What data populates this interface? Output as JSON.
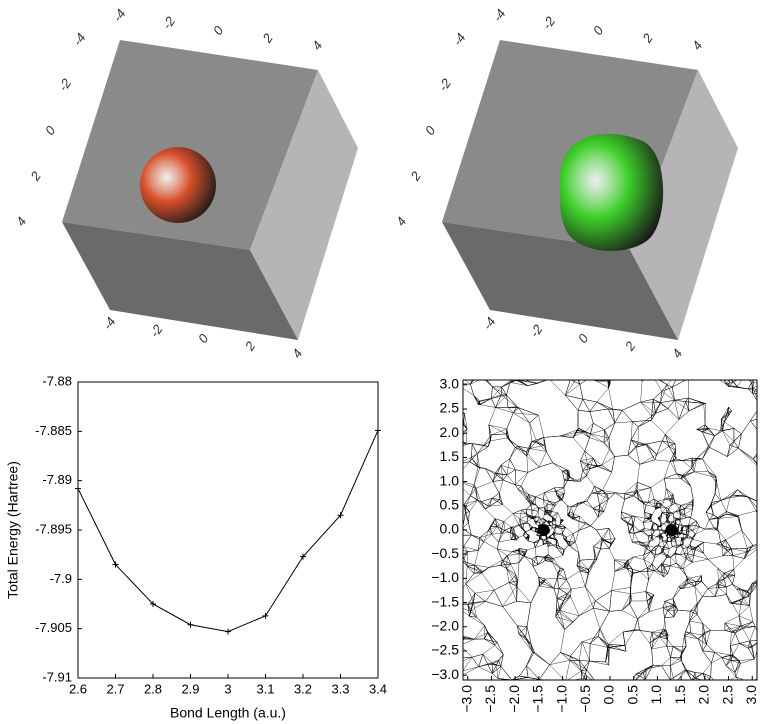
{
  "chart_data": [
    {
      "type": "isosurface",
      "color": "#d8502a",
      "xlim": [
        -4,
        4
      ],
      "xticks": [
        -4,
        -2,
        0,
        2,
        4
      ],
      "ylim": [
        -4,
        4
      ],
      "yticks": [
        -4,
        -2,
        0,
        2,
        4
      ],
      "zlim": [
        -4,
        4
      ],
      "zticks": [
        -4,
        -2,
        0,
        2,
        4
      ]
    },
    {
      "type": "isosurface",
      "color": "#3ecf2a",
      "xlim": [
        -4,
        4
      ],
      "xticks": [
        -4,
        -2,
        0,
        2,
        4
      ],
      "ylim": [
        -4,
        4
      ],
      "yticks": [
        -4,
        -2,
        0,
        2,
        4
      ],
      "zlim": [
        -4,
        4
      ],
      "zticks": [
        -4,
        -2,
        0,
        2,
        4
      ]
    },
    {
      "type": "line",
      "color": "#000000",
      "xlabel": "Bond Length (a.u.)",
      "ylabel": "Total Energy (Hartree)",
      "x": [
        2.6,
        2.7,
        2.8,
        2.9,
        3.0,
        3.1,
        3.2,
        3.3,
        3.4
      ],
      "values": [
        -7.8908,
        -7.8985,
        -7.9025,
        -7.9046,
        -7.9053,
        -7.9037,
        -7.8977,
        -7.8935,
        -7.8849
      ],
      "xlim": [
        2.6,
        3.4
      ],
      "xticks": [
        2.6,
        2.7,
        2.8,
        2.9,
        3,
        3.1,
        3.2,
        3.3,
        3.4
      ],
      "ylim": [
        -7.91,
        -7.88
      ],
      "yticks": [
        -7.88,
        -7.885,
        -7.89,
        -7.895,
        -7.9,
        -7.905,
        -7.91
      ]
    },
    {
      "type": "mesh",
      "color": "#000000",
      "x": [
        -1.4,
        1.3
      ],
      "values": [
        0,
        0
      ],
      "xlim": [
        -3.1,
        3.1
      ],
      "ylim": [
        -3.1,
        3.1
      ],
      "xticks": [
        {
          "value": -3,
          "label": "−3.0"
        },
        {
          "value": -2.5,
          "label": "−2.5"
        },
        {
          "value": -2,
          "label": "−2.0"
        },
        {
          "value": -1.5,
          "label": "−1.5"
        },
        {
          "value": -1,
          "label": "−1.0"
        },
        {
          "value": -0.5,
          "label": "−0.5"
        },
        {
          "value": 0,
          "label": "0.0"
        },
        {
          "value": 0.5,
          "label": "0.5"
        },
        {
          "value": 1,
          "label": "1.0"
        },
        {
          "value": 1.5,
          "label": "1.5"
        },
        {
          "value": 2,
          "label": "2.0"
        },
        {
          "value": 2.5,
          "label": "2.5"
        },
        {
          "value": 3,
          "label": "3.0"
        }
      ],
      "yticks": [
        {
          "value": -3,
          "label": "−3.0"
        },
        {
          "value": -2.5,
          "label": "−2.5"
        },
        {
          "value": -2,
          "label": "−2.0"
        },
        {
          "value": -1.5,
          "label": "−1.5"
        },
        {
          "value": -1,
          "label": "−1.0"
        },
        {
          "value": -0.5,
          "label": "−0.5"
        },
        {
          "value": 0,
          "label": "0.0"
        },
        {
          "value": 0.5,
          "label": "0.5"
        },
        {
          "value": 1,
          "label": "1.0"
        },
        {
          "value": 1.5,
          "label": "1.5"
        },
        {
          "value": 2,
          "label": "2.0"
        },
        {
          "value": 2.5,
          "label": "2.5"
        },
        {
          "value": 3,
          "label": "3.0"
        }
      ]
    }
  ]
}
